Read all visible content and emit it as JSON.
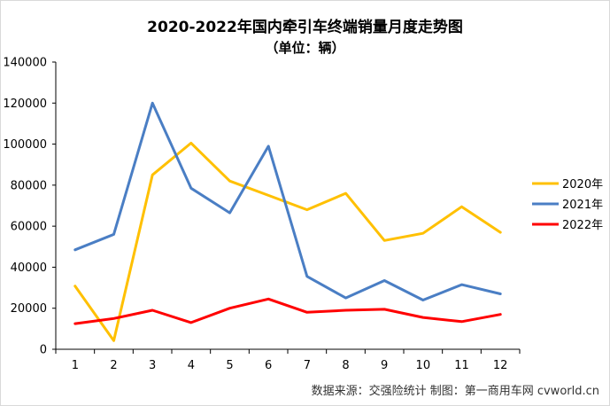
{
  "title": "2020-2022年国内牵引车终端销量月度走势图",
  "subtitle": "（单位：辆）",
  "source": "数据来源：交强险统计  制图：第一商用车网 cvworld.cn",
  "chart_data": {
    "type": "line",
    "categories": [
      "1",
      "2",
      "3",
      "4",
      "5",
      "6",
      "7",
      "8",
      "9",
      "10",
      "11",
      "12"
    ],
    "ylim": [
      0,
      140000
    ],
    "yticks": [
      0,
      20000,
      40000,
      60000,
      80000,
      100000,
      120000,
      140000
    ],
    "ytick_labels": [
      "0",
      "20000",
      "40000",
      "60000",
      "80000",
      "100000",
      "120000",
      "140000"
    ],
    "legend_position": "right",
    "grid": false,
    "series": [
      {
        "name": "2020年",
        "color": "#FFC000",
        "values": [
          30800,
          4200,
          85000,
          100500,
          82000,
          75000,
          68000,
          76000,
          53000,
          56500,
          69500,
          57000
        ]
      },
      {
        "name": "2021年",
        "color": "#4A7EC4",
        "values": [
          48500,
          56000,
          120000,
          78500,
          66500,
          99000,
          35500,
          25000,
          33500,
          24000,
          31500,
          27000
        ]
      },
      {
        "name": "2022年",
        "color": "#FF0000",
        "values": [
          12500,
          15000,
          19000,
          13000,
          20000,
          24500,
          18000,
          19000,
          19500,
          15500,
          13500,
          17000
        ]
      }
    ]
  }
}
